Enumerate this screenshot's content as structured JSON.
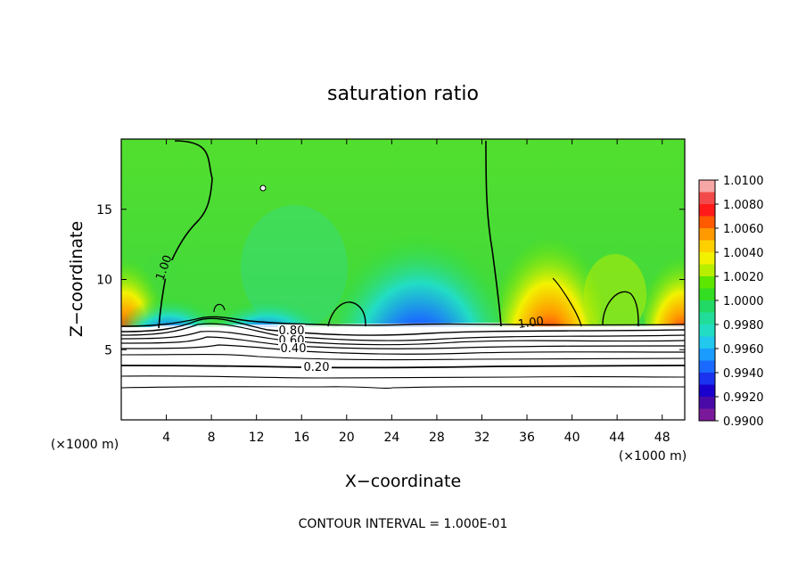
{
  "chart_data": {
    "type": "heatmap",
    "title": "saturation ratio",
    "xlabel": "X−coordinate",
    "ylabel": "Z−coordinate",
    "x_unit_note_left": "(×1000 m)",
    "x_unit_note_right": "(×1000 m)",
    "xlim": [
      0,
      50
    ],
    "ylim": [
      0,
      20
    ],
    "x_ticks": [
      4,
      8,
      12,
      16,
      20,
      24,
      28,
      32,
      36,
      40,
      44,
      48
    ],
    "y_ticks": [
      5,
      10,
      15
    ],
    "colorbar": {
      "min": 0.99,
      "max": 1.01,
      "tick_labels": [
        "1.0100",
        "1.0080",
        "1.0060",
        "1.0040",
        "1.0020",
        "1.0000",
        "0.9980",
        "0.9960",
        "0.9940",
        "0.9920",
        "0.9900"
      ],
      "colors": [
        "#f7a6a6",
        "#f24a4a",
        "#ff1a1a",
        "#ff5a00",
        "#ff9900",
        "#ffd000",
        "#f2f200",
        "#b8ee00",
        "#5ce600",
        "#33dd22",
        "#22d966",
        "#22dd99",
        "#22ddc4",
        "#22c8ee",
        "#1a9cff",
        "#1a6aff",
        "#1a33ee",
        "#1a00cc",
        "#4a0aa8",
        "#7a1a9a"
      ]
    },
    "contour_labels": [
      "1.00",
      "1.00",
      "0.80",
      "0.60",
      "0.40",
      "0.20"
    ],
    "footer": "CONTOUR INTERVAL = 1.000E-01"
  }
}
